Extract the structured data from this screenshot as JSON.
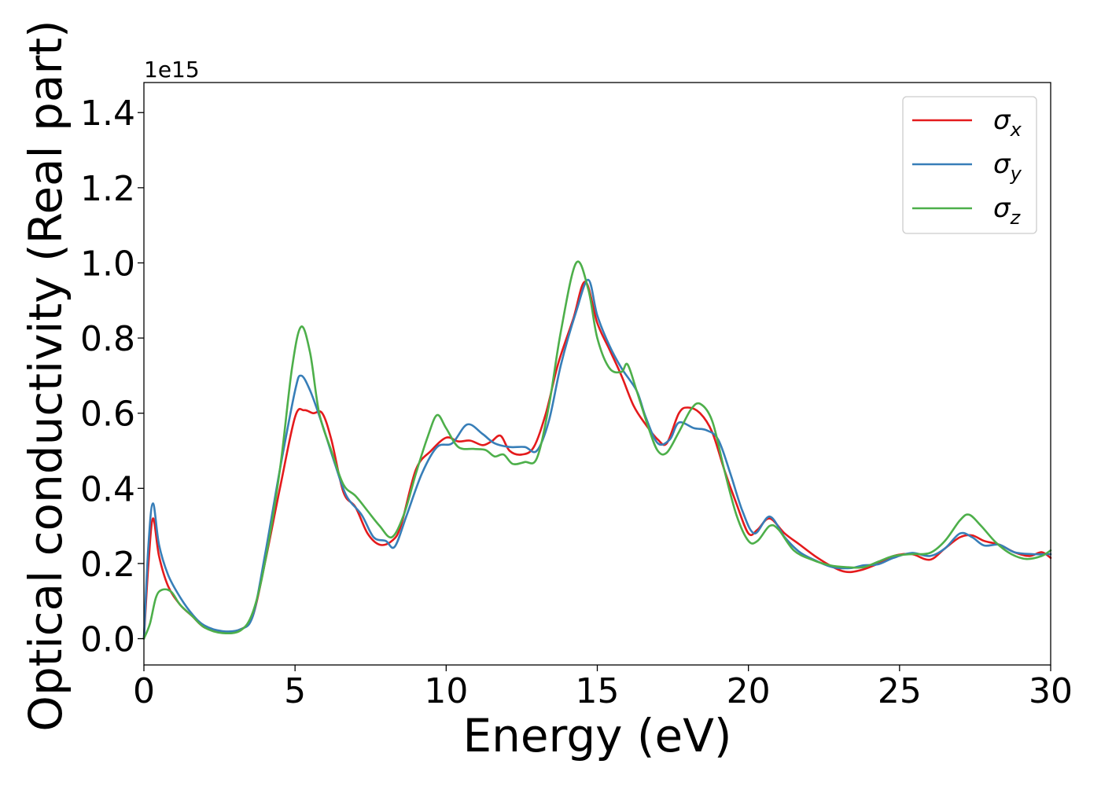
{
  "chart_data": {
    "type": "line",
    "title": "",
    "xlabel": "Energy (eV)",
    "ylabel": "Optical conductivity (Real part)",
    "y_offset_label": "1e15",
    "xlim": [
      0,
      30
    ],
    "ylim": [
      -0.07,
      1.48
    ],
    "x_ticks": [
      0,
      5,
      10,
      15,
      20,
      25,
      30
    ],
    "x_tick_labels": [
      "0",
      "5",
      "10",
      "15",
      "20",
      "25",
      "30"
    ],
    "y_ticks": [
      0.0,
      0.2,
      0.4,
      0.6,
      0.8,
      1.0,
      1.2,
      1.4
    ],
    "y_tick_labels": [
      "0.0",
      "0.2",
      "0.4",
      "0.6",
      "0.8",
      "1.0",
      "1.2",
      "1.4"
    ],
    "grid": false,
    "legend_position": "top-right",
    "series": [
      {
        "name": "σx",
        "base": "σ",
        "sub": "x",
        "color": "#e41a1c",
        "points": [
          [
            0,
            0.0
          ],
          [
            0.15,
            0.2
          ],
          [
            0.3,
            0.32
          ],
          [
            0.5,
            0.22
          ],
          [
            0.8,
            0.14
          ],
          [
            1.2,
            0.09
          ],
          [
            1.6,
            0.06
          ],
          [
            2.0,
            0.03
          ],
          [
            2.6,
            0.018
          ],
          [
            3.2,
            0.025
          ],
          [
            3.6,
            0.06
          ],
          [
            4.0,
            0.2
          ],
          [
            4.5,
            0.4
          ],
          [
            5.0,
            0.59
          ],
          [
            5.3,
            0.608
          ],
          [
            5.6,
            0.6
          ],
          [
            5.9,
            0.6
          ],
          [
            6.2,
            0.53
          ],
          [
            6.6,
            0.39
          ],
          [
            7.0,
            0.35
          ],
          [
            7.4,
            0.28
          ],
          [
            7.8,
            0.25
          ],
          [
            8.2,
            0.26
          ],
          [
            8.5,
            0.3
          ],
          [
            9.0,
            0.45
          ],
          [
            9.5,
            0.5
          ],
          [
            10.0,
            0.535
          ],
          [
            10.4,
            0.525
          ],
          [
            10.8,
            0.527
          ],
          [
            11.2,
            0.515
          ],
          [
            11.5,
            0.525
          ],
          [
            11.8,
            0.54
          ],
          [
            12.1,
            0.5
          ],
          [
            12.5,
            0.49
          ],
          [
            12.9,
            0.51
          ],
          [
            13.3,
            0.6
          ],
          [
            13.7,
            0.73
          ],
          [
            14.2,
            0.85
          ],
          [
            14.6,
            0.95
          ],
          [
            15.0,
            0.84
          ],
          [
            15.4,
            0.77
          ],
          [
            15.8,
            0.7
          ],
          [
            16.2,
            0.62
          ],
          [
            16.6,
            0.57
          ],
          [
            17.0,
            0.53
          ],
          [
            17.3,
            0.52
          ],
          [
            17.7,
            0.6
          ],
          [
            18.0,
            0.615
          ],
          [
            18.4,
            0.6
          ],
          [
            18.8,
            0.55
          ],
          [
            19.2,
            0.45
          ],
          [
            19.6,
            0.36
          ],
          [
            20.0,
            0.28
          ],
          [
            20.3,
            0.29
          ],
          [
            20.7,
            0.32
          ],
          [
            21.2,
            0.28
          ],
          [
            21.7,
            0.25
          ],
          [
            22.2,
            0.22
          ],
          [
            22.7,
            0.195
          ],
          [
            23.2,
            0.178
          ],
          [
            23.7,
            0.182
          ],
          [
            24.3,
            0.2
          ],
          [
            24.8,
            0.22
          ],
          [
            25.4,
            0.225
          ],
          [
            26.0,
            0.21
          ],
          [
            26.5,
            0.24
          ],
          [
            27.0,
            0.27
          ],
          [
            27.4,
            0.275
          ],
          [
            27.8,
            0.26
          ],
          [
            28.3,
            0.25
          ],
          [
            28.8,
            0.23
          ],
          [
            29.3,
            0.22
          ],
          [
            29.7,
            0.23
          ],
          [
            30.0,
            0.215
          ]
        ]
      },
      {
        "name": "σy",
        "base": "σ",
        "sub": "y",
        "color": "#377eb8",
        "points": [
          [
            0,
            0.0
          ],
          [
            0.15,
            0.25
          ],
          [
            0.3,
            0.36
          ],
          [
            0.5,
            0.25
          ],
          [
            0.8,
            0.17
          ],
          [
            1.2,
            0.11
          ],
          [
            1.6,
            0.065
          ],
          [
            2.0,
            0.035
          ],
          [
            2.6,
            0.02
          ],
          [
            3.2,
            0.025
          ],
          [
            3.6,
            0.06
          ],
          [
            4.0,
            0.22
          ],
          [
            4.5,
            0.45
          ],
          [
            5.0,
            0.66
          ],
          [
            5.2,
            0.7
          ],
          [
            5.5,
            0.66
          ],
          [
            5.9,
            0.57
          ],
          [
            6.3,
            0.47
          ],
          [
            6.7,
            0.38
          ],
          [
            7.2,
            0.33
          ],
          [
            7.6,
            0.27
          ],
          [
            8.0,
            0.26
          ],
          [
            8.3,
            0.245
          ],
          [
            8.7,
            0.33
          ],
          [
            9.2,
            0.44
          ],
          [
            9.7,
            0.51
          ],
          [
            10.2,
            0.52
          ],
          [
            10.7,
            0.57
          ],
          [
            11.2,
            0.545
          ],
          [
            11.6,
            0.52
          ],
          [
            12.1,
            0.51
          ],
          [
            12.6,
            0.51
          ],
          [
            13.0,
            0.5
          ],
          [
            13.4,
            0.58
          ],
          [
            13.8,
            0.73
          ],
          [
            14.3,
            0.87
          ],
          [
            14.7,
            0.955
          ],
          [
            15.0,
            0.86
          ],
          [
            15.4,
            0.78
          ],
          [
            15.8,
            0.72
          ],
          [
            16.3,
            0.66
          ],
          [
            16.6,
            0.59
          ],
          [
            17.0,
            0.52
          ],
          [
            17.4,
            0.53
          ],
          [
            17.7,
            0.575
          ],
          [
            18.2,
            0.56
          ],
          [
            18.6,
            0.555
          ],
          [
            19.0,
            0.53
          ],
          [
            19.4,
            0.44
          ],
          [
            19.8,
            0.34
          ],
          [
            20.2,
            0.28
          ],
          [
            20.7,
            0.325
          ],
          [
            21.2,
            0.27
          ],
          [
            21.7,
            0.23
          ],
          [
            22.3,
            0.205
          ],
          [
            22.8,
            0.19
          ],
          [
            23.4,
            0.188
          ],
          [
            23.8,
            0.195
          ],
          [
            24.3,
            0.198
          ],
          [
            24.8,
            0.215
          ],
          [
            25.4,
            0.228
          ],
          [
            26.0,
            0.22
          ],
          [
            26.5,
            0.24
          ],
          [
            27.0,
            0.28
          ],
          [
            27.4,
            0.27
          ],
          [
            27.8,
            0.248
          ],
          [
            28.3,
            0.25
          ],
          [
            28.8,
            0.23
          ],
          [
            29.4,
            0.225
          ],
          [
            30.0,
            0.225
          ]
        ]
      },
      {
        "name": "σz",
        "base": "σ",
        "sub": "z",
        "color": "#4daf4a",
        "points": [
          [
            0,
            0.0
          ],
          [
            0.2,
            0.04
          ],
          [
            0.4,
            0.11
          ],
          [
            0.6,
            0.13
          ],
          [
            0.9,
            0.125
          ],
          [
            1.2,
            0.09
          ],
          [
            1.6,
            0.06
          ],
          [
            2.0,
            0.03
          ],
          [
            2.6,
            0.015
          ],
          [
            3.2,
            0.022
          ],
          [
            3.6,
            0.07
          ],
          [
            4.0,
            0.2
          ],
          [
            4.5,
            0.45
          ],
          [
            4.9,
            0.72
          ],
          [
            5.2,
            0.83
          ],
          [
            5.5,
            0.76
          ],
          [
            5.8,
            0.6
          ],
          [
            6.2,
            0.5
          ],
          [
            6.6,
            0.41
          ],
          [
            7.0,
            0.38
          ],
          [
            7.4,
            0.34
          ],
          [
            7.8,
            0.3
          ],
          [
            8.2,
            0.27
          ],
          [
            8.6,
            0.33
          ],
          [
            9.0,
            0.44
          ],
          [
            9.4,
            0.54
          ],
          [
            9.7,
            0.595
          ],
          [
            10.0,
            0.56
          ],
          [
            10.4,
            0.51
          ],
          [
            10.9,
            0.505
          ],
          [
            11.3,
            0.502
          ],
          [
            11.6,
            0.485
          ],
          [
            11.9,
            0.49
          ],
          [
            12.2,
            0.465
          ],
          [
            12.6,
            0.47
          ],
          [
            13.0,
            0.48
          ],
          [
            13.4,
            0.62
          ],
          [
            13.8,
            0.82
          ],
          [
            14.3,
            1.0
          ],
          [
            14.7,
            0.93
          ],
          [
            15.0,
            0.8
          ],
          [
            15.4,
            0.72
          ],
          [
            15.8,
            0.71
          ],
          [
            16.0,
            0.73
          ],
          [
            16.3,
            0.66
          ],
          [
            16.7,
            0.56
          ],
          [
            17.0,
            0.5
          ],
          [
            17.3,
            0.495
          ],
          [
            17.7,
            0.55
          ],
          [
            18.1,
            0.61
          ],
          [
            18.4,
            0.625
          ],
          [
            18.8,
            0.58
          ],
          [
            19.2,
            0.45
          ],
          [
            19.6,
            0.33
          ],
          [
            20.0,
            0.26
          ],
          [
            20.3,
            0.26
          ],
          [
            20.7,
            0.3
          ],
          [
            21.0,
            0.29
          ],
          [
            21.5,
            0.235
          ],
          [
            22.1,
            0.21
          ],
          [
            22.7,
            0.195
          ],
          [
            23.3,
            0.19
          ],
          [
            23.8,
            0.19
          ],
          [
            24.3,
            0.205
          ],
          [
            24.8,
            0.22
          ],
          [
            25.4,
            0.225
          ],
          [
            26.0,
            0.228
          ],
          [
            26.5,
            0.26
          ],
          [
            27.0,
            0.315
          ],
          [
            27.3,
            0.33
          ],
          [
            27.7,
            0.3
          ],
          [
            28.2,
            0.255
          ],
          [
            28.7,
            0.225
          ],
          [
            29.2,
            0.212
          ],
          [
            29.7,
            0.22
          ],
          [
            30.0,
            0.235
          ]
        ]
      }
    ]
  }
}
